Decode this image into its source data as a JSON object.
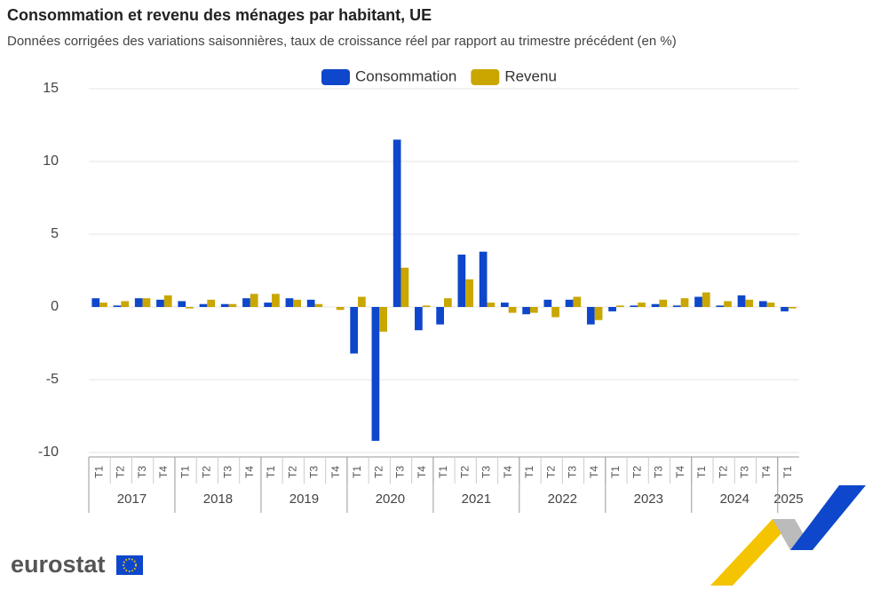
{
  "chart_data": {
    "type": "bar",
    "title": "Consommation et revenu des ménages par habitant, UE",
    "subtitle": "Données corrigées des variations saisonnières, taux de croissance réel par rapport au trimestre précédent (en %)",
    "groups": [
      {
        "label": "2017",
        "quarters": [
          "T1",
          "T2",
          "T3",
          "T4"
        ]
      },
      {
        "label": "2018",
        "quarters": [
          "T1",
          "T2",
          "T3",
          "T4"
        ]
      },
      {
        "label": "2019",
        "quarters": [
          "T1",
          "T2",
          "T3",
          "T4"
        ]
      },
      {
        "label": "2020",
        "quarters": [
          "T1",
          "T2",
          "T3",
          "T4"
        ]
      },
      {
        "label": "2021",
        "quarters": [
          "T1",
          "T2",
          "T3",
          "T4"
        ]
      },
      {
        "label": "2022",
        "quarters": [
          "T1",
          "T2",
          "T3",
          "T4"
        ]
      },
      {
        "label": "2023",
        "quarters": [
          "T1",
          "T2",
          "T3",
          "T4"
        ]
      },
      {
        "label": "2024",
        "quarters": [
          "T1",
          "T2",
          "T3",
          "T4"
        ]
      },
      {
        "label": "2025",
        "quarters": [
          "T1"
        ]
      }
    ],
    "series": [
      {
        "name": "Consommation",
        "color": "#0e47cb",
        "values": [
          0.6,
          0.1,
          0.6,
          0.5,
          0.4,
          0.2,
          0.2,
          0.6,
          0.3,
          0.6,
          0.5,
          0.0,
          -3.2,
          -9.2,
          11.5,
          -1.6,
          -1.2,
          3.6,
          3.8,
          0.3,
          -0.5,
          0.5,
          0.5,
          -1.2,
          -0.3,
          0.1,
          0.2,
          0.1,
          0.7,
          0.1,
          0.8,
          0.4,
          -0.3
        ]
      },
      {
        "name": "Revenu",
        "color": "#c9a600",
        "values": [
          0.3,
          0.4,
          0.6,
          0.8,
          -0.1,
          0.5,
          0.2,
          0.9,
          0.9,
          0.5,
          0.2,
          -0.2,
          0.7,
          -1.7,
          2.7,
          0.1,
          0.6,
          1.9,
          0.3,
          -0.4,
          -0.4,
          -0.7,
          0.7,
          -0.9,
          0.1,
          0.3,
          0.5,
          0.6,
          1.0,
          0.4,
          0.5,
          0.3,
          -0.1
        ]
      }
    ],
    "ylim": [
      -10,
      15
    ],
    "yticks": [
      -10,
      -5,
      0,
      5,
      10,
      15
    ],
    "grid": true,
    "legend": "top",
    "logo": "eurostat"
  }
}
